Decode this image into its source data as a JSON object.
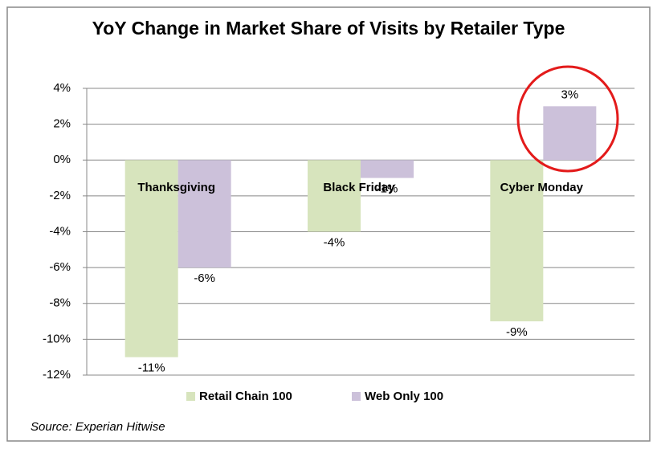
{
  "chart_data": {
    "type": "bar",
    "title": "YoY Change in Market Share of Visits by Retailer Type",
    "categories": [
      "Thanksgiving",
      "Black Friday",
      "Cyber Monday"
    ],
    "series": [
      {
        "name": "Retail Chain 100",
        "color": "#d7e4bd",
        "values": [
          -11,
          -4,
          -9
        ],
        "value_labels": [
          "-11%",
          "-4%",
          "-9%"
        ]
      },
      {
        "name": "Web Only 100",
        "color": "#ccc1da",
        "values": [
          -6,
          -1,
          3
        ],
        "value_labels": [
          "-6%",
          "-1%",
          "3%"
        ]
      }
    ],
    "ylim": [
      -12,
      4
    ],
    "yticks": [
      {
        "value": -12,
        "label": "-12%"
      },
      {
        "value": -10,
        "label": "-10%"
      },
      {
        "value": -8,
        "label": "-8%"
      },
      {
        "value": -6,
        "label": "-6%"
      },
      {
        "value": -4,
        "label": "-4%"
      },
      {
        "value": -2,
        "label": "-2%"
      },
      {
        "value": 0,
        "label": "0%"
      },
      {
        "value": 2,
        "label": "2%"
      },
      {
        "value": 4,
        "label": "4%"
      }
    ],
    "grid": true,
    "legend": "bottom",
    "source": "Source:  Experian Hitwise"
  }
}
